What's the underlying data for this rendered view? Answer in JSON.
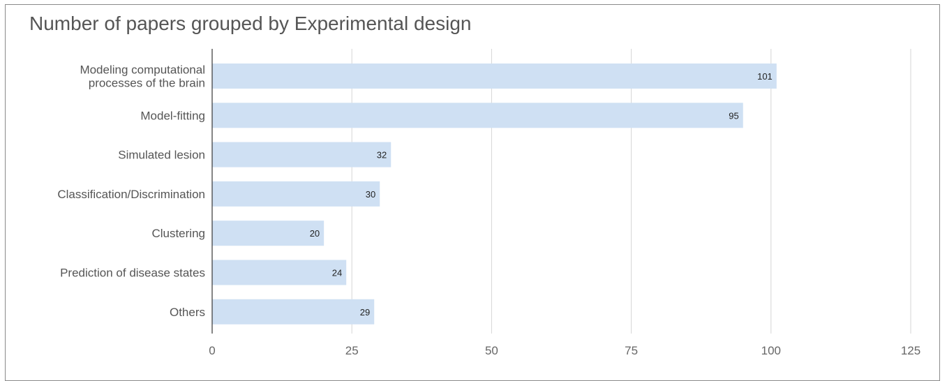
{
  "chart_data": {
    "type": "bar",
    "orientation": "horizontal",
    "title": "Number of papers grouped by Experimental design",
    "categories": [
      [
        "Modeling computational",
        "processes of the brain"
      ],
      [
        "Model-fitting"
      ],
      [
        "Simulated lesion"
      ],
      [
        "Classification/Discrimination"
      ],
      [
        "Clustering"
      ],
      [
        "Prediction of disease states"
      ],
      [
        "Others"
      ]
    ],
    "values": [
      101,
      95,
      32,
      30,
      20,
      24,
      29
    ],
    "xlim": [
      0,
      125
    ],
    "xticks": [
      0,
      25,
      50,
      75,
      100,
      125
    ],
    "grid": true,
    "bar_color": "#cfe0f3",
    "data_labels": true
  }
}
